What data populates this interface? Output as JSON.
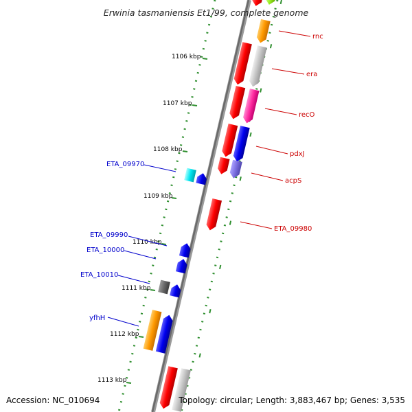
{
  "title": "Erwinia tasmaniensis Et1/99, complete genome",
  "accession": "Accession: NC_010694",
  "summary": "Topology: circular; Length: 3,883,467 bp; Genes: 3,535",
  "ticks": [
    "1106 kbp",
    "1107 kbp",
    "1108 kbp",
    "1109 kbp",
    "1110 kbp",
    "1111 kbp",
    "1112 kbp",
    "1113 kbp"
  ],
  "right_labels": [
    "rnc",
    "era",
    "recO",
    "pdxJ",
    "acpS",
    "ETA_09980"
  ],
  "left_labels": [
    "ETA_09970",
    "ETA_09990",
    "ETA_10000",
    "ETA_10010",
    "yfhH"
  ],
  "colors": {
    "backbone": "#7a7a7a",
    "scale_dots": "#2f8f2f",
    "right_label": "#cc0000",
    "left_label": "#0000cc",
    "red": "#ff0000",
    "blue": "#0000ee",
    "orange": "#ff9900",
    "gray": "#bdbdbd",
    "pink": "#ff2aa0",
    "cyan": "#00e6f0",
    "lime": "#99ee22",
    "purple": "#7b6fe0",
    "dark_gray": "#666666"
  }
}
